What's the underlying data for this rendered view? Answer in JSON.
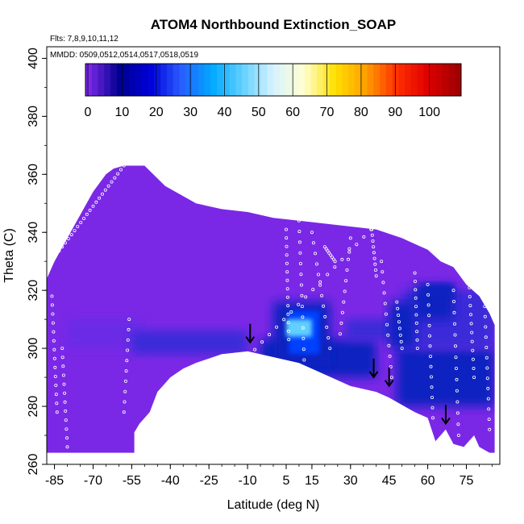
{
  "chart_data": {
    "type": "heatmap",
    "title": "ATOM4 Northbound Extinction_SOAP",
    "annotations": [
      "Flts: 7,8,9,10,11,12",
      "MMDD: 0509,0512,0514,0517,0518,0519"
    ],
    "xlabel": "Latitude (deg N)",
    "ylabel": "Theta (C)",
    "xlim": [
      -88,
      88
    ],
    "ylim": [
      260,
      404
    ],
    "x_ticks": [
      -85,
      -70,
      -55,
      -40,
      -25,
      -10,
      5,
      15,
      30,
      45,
      60,
      75
    ],
    "y_ticks": [
      260,
      280,
      300,
      320,
      340,
      360,
      380,
      400
    ],
    "colorbar": {
      "ticks": [
        0,
        10,
        20,
        30,
        40,
        50,
        60,
        70,
        80,
        90,
        100
      ],
      "range": [
        0,
        110
      ],
      "colors": [
        "#7a28e6",
        "#000090",
        "#0000d8",
        "#2a5cff",
        "#00a8ff",
        "#62d0ff",
        "#d8f2ff",
        "#ffffd0",
        "#ffe000",
        "#ffa000",
        "#ff3000",
        "#e00000",
        "#a00000"
      ]
    },
    "field_colors": {
      "background": "#7a28e6",
      "low": "#6a2ae6",
      "medium": "#3a2ad8",
      "high": "#1020c0",
      "peak": "#0040ff",
      "max": "#60d0ff",
      "markers": "#ffffff",
      "arrows": "#000000"
    },
    "arrows": [
      {
        "lat": -9,
        "theta": 304
      },
      {
        "lat": 39,
        "theta": 292
      },
      {
        "lat": 45,
        "theta": 289
      },
      {
        "lat": 67,
        "theta": 276
      }
    ]
  }
}
